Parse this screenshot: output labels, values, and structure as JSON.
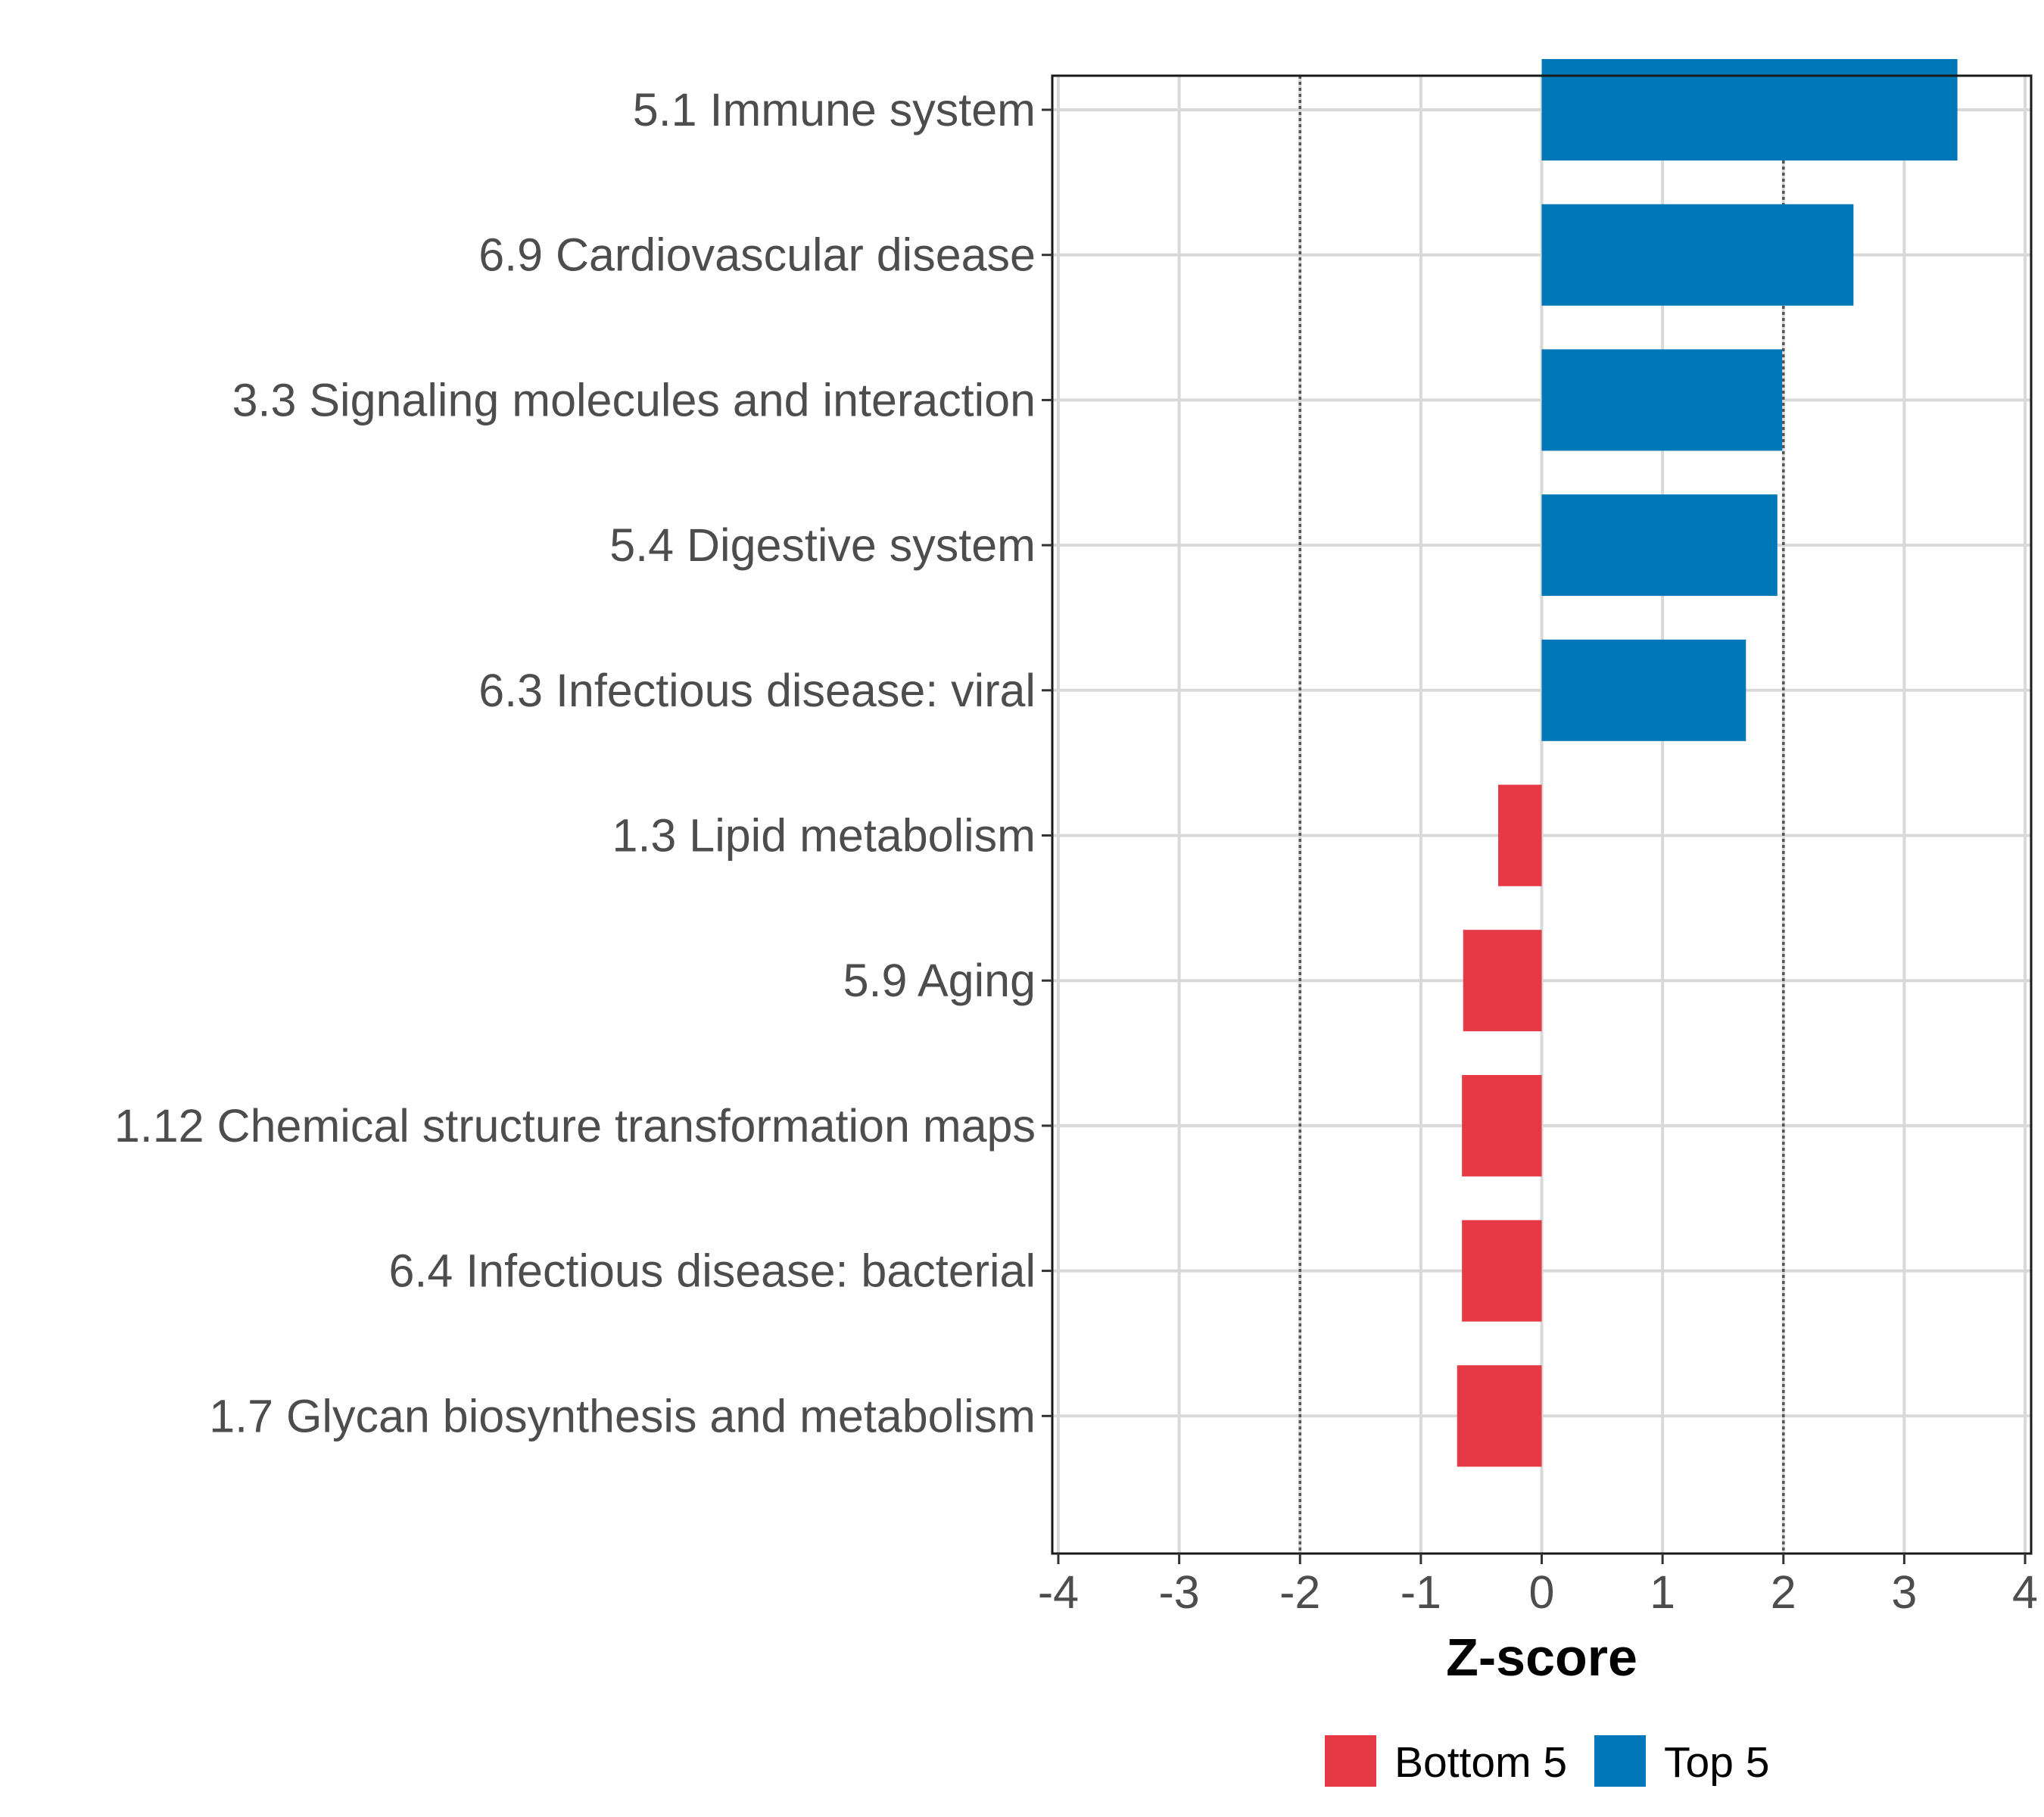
{
  "chart_data": {
    "type": "bar",
    "orientation": "horizontal",
    "title": "",
    "xlabel": "Z-score",
    "ylabel": "",
    "xlim": [
      -4.05,
      4.05
    ],
    "x_ticks": [
      "-4",
      "-3",
      "-2",
      "-1",
      "0",
      "1",
      "2",
      "3",
      "4"
    ],
    "reference_lines": [
      -2,
      2
    ],
    "grid": true,
    "categories": [
      "5.1 Immune system",
      "6.9 Cardiovascular disease",
      "3.3 Signaling molecules and interaction",
      "5.4 Digestive system",
      "6.3 Infectious disease: viral",
      "1.3 Lipid metabolism",
      "5.9 Aging",
      "1.12 Chemical structure transformation maps",
      "6.4 Infectious disease: bacterial",
      "1.7 Glycan biosynthesis and metabolism"
    ],
    "values": [
      3.44,
      2.58,
      1.99,
      1.95,
      1.69,
      -0.36,
      -0.65,
      -0.66,
      -0.66,
      -0.7
    ],
    "groups": [
      "Top 5",
      "Top 5",
      "Top 5",
      "Top 5",
      "Top 5",
      "Bottom 5",
      "Bottom 5",
      "Bottom 5",
      "Bottom 5",
      "Bottom 5"
    ],
    "legend": {
      "position": "bottom",
      "items": [
        {
          "label": "Bottom 5",
          "color": "#e63946"
        },
        {
          "label": "Top 5",
          "color": "#0077b6"
        }
      ]
    },
    "colors": {
      "Top 5": "#0077b6",
      "Bottom 5": "#e63946"
    }
  }
}
